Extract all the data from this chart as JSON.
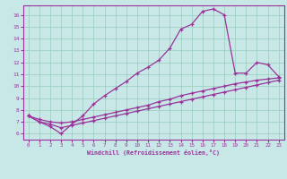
{
  "title": "",
  "xlabel": "Windchill (Refroidissement éolien,°C)",
  "background_color": "#c8e8e8",
  "line_color": "#993399",
  "grid_color": "#99ccbb",
  "xlim": [
    -0.5,
    23.5
  ],
  "ylim": [
    5.5,
    16.8
  ],
  "yticks": [
    6,
    7,
    8,
    9,
    10,
    11,
    12,
    13,
    14,
    15,
    16
  ],
  "xticks": [
    0,
    1,
    2,
    3,
    4,
    5,
    6,
    7,
    8,
    9,
    10,
    11,
    12,
    13,
    14,
    15,
    16,
    17,
    18,
    19,
    20,
    21,
    22,
    23
  ],
  "curve1_x": [
    0,
    1,
    2,
    3,
    4,
    5,
    6,
    7,
    8,
    9,
    10,
    11,
    12,
    13,
    14,
    15,
    16,
    17,
    18,
    19,
    20,
    21,
    22,
    23
  ],
  "curve1_y": [
    7.5,
    7.0,
    6.6,
    6.0,
    6.8,
    7.5,
    8.5,
    9.2,
    9.8,
    10.4,
    11.1,
    11.6,
    12.2,
    13.2,
    14.8,
    15.2,
    16.3,
    16.5,
    16.0,
    11.1,
    11.1,
    12.0,
    11.8,
    10.8
  ],
  "curve2_x": [
    0,
    1,
    2,
    3,
    4,
    5,
    6,
    7,
    8,
    9,
    10,
    11,
    12,
    13,
    14,
    15,
    16,
    17,
    18,
    19,
    20,
    21,
    22,
    23
  ],
  "curve2_y": [
    7.5,
    7.2,
    7.0,
    6.9,
    7.0,
    7.2,
    7.4,
    7.6,
    7.8,
    8.0,
    8.2,
    8.4,
    8.7,
    8.9,
    9.2,
    9.4,
    9.6,
    9.8,
    10.0,
    10.2,
    10.35,
    10.5,
    10.6,
    10.7
  ],
  "curve3_x": [
    0,
    1,
    2,
    3,
    4,
    5,
    6,
    7,
    8,
    9,
    10,
    11,
    12,
    13,
    14,
    15,
    16,
    17,
    18,
    19,
    20,
    21,
    22,
    23
  ],
  "curve3_y": [
    7.5,
    7.0,
    6.8,
    6.5,
    6.7,
    6.9,
    7.1,
    7.3,
    7.5,
    7.7,
    7.9,
    8.1,
    8.3,
    8.5,
    8.7,
    8.9,
    9.1,
    9.3,
    9.5,
    9.7,
    9.9,
    10.1,
    10.3,
    10.5
  ]
}
